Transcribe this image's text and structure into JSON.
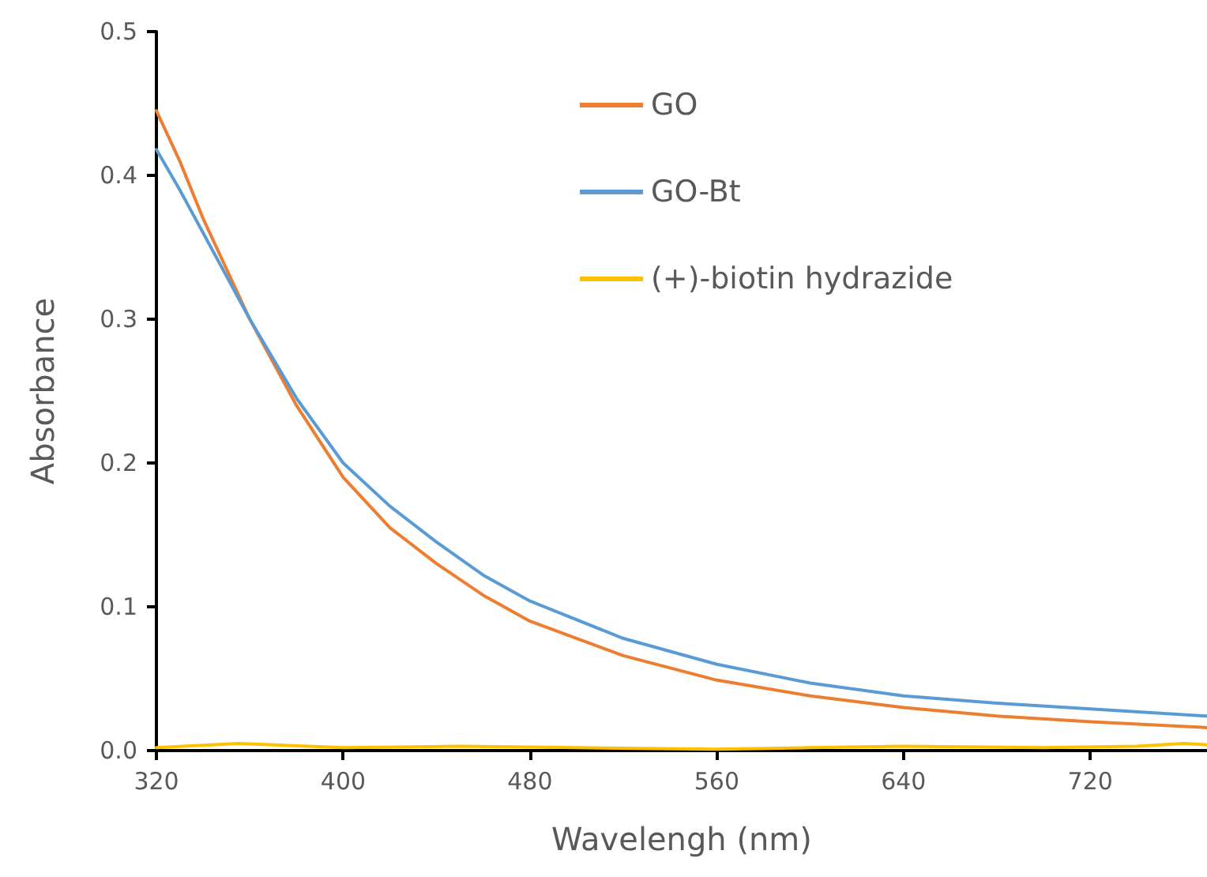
{
  "chart_data": {
    "type": "line",
    "xlabel": "Wavelengh (nm)",
    "ylabel": "Absorbance",
    "xlim": [
      320,
      770
    ],
    "xticks": [
      320,
      400,
      480,
      560,
      640,
      720
    ],
    "ylim": [
      0,
      0.5
    ],
    "yticks": [
      {
        "value": 0,
        "label": "0.0"
      },
      0.1,
      0.2,
      0.3,
      0.4,
      0.5
    ],
    "grid": false,
    "legend": "top right",
    "marker": "none",
    "line_style": "solid",
    "series": [
      {
        "name": "GO",
        "color": "#ed7d31",
        "x": [
          320,
          330,
          340,
          360,
          380,
          400,
          420,
          440,
          460,
          480,
          520,
          560,
          600,
          640,
          680,
          720,
          770
        ],
        "values": [
          0.445,
          0.41,
          0.37,
          0.3,
          0.24,
          0.19,
          0.155,
          0.13,
          0.108,
          0.09,
          0.066,
          0.049,
          0.038,
          0.03,
          0.024,
          0.02,
          0.016
        ]
      },
      {
        "name": "GO-Bt",
        "color": "#5b9bd5",
        "x": [
          320,
          330,
          340,
          360,
          380,
          400,
          420,
          440,
          460,
          480,
          520,
          560,
          600,
          640,
          680,
          720,
          770
        ],
        "values": [
          0.418,
          0.39,
          0.36,
          0.3,
          0.245,
          0.2,
          0.17,
          0.145,
          0.122,
          0.104,
          0.078,
          0.06,
          0.047,
          0.038,
          0.033,
          0.029,
          0.024
        ]
      },
      {
        "name": "(+)-biotin hydrazide",
        "color": "#ffc000",
        "x": [
          320,
          355,
          400,
          450,
          500,
          560,
          600,
          640,
          700,
          740,
          760,
          770
        ],
        "values": [
          0.002,
          0.005,
          0.002,
          0.003,
          0.002,
          0.001,
          0.002,
          0.003,
          0.002,
          0.003,
          0.005,
          0.004
        ]
      }
    ]
  }
}
